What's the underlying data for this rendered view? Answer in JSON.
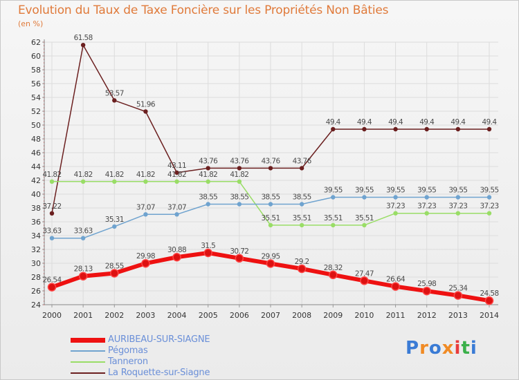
{
  "title": "Evolution du Taux de Taxe Foncière sur les Propriétés Non Bâties",
  "unit_label": "(en %)",
  "logo_text": "Proxiti",
  "chart_data": {
    "type": "line",
    "title": "Evolution du Taux de Taxe Foncière sur les Propriétés Non Bâties",
    "ylabel": "(en %)",
    "xlabel": "",
    "ylim": [
      24,
      62
    ],
    "yticks": [
      24,
      26,
      28,
      30,
      32,
      34,
      36,
      38,
      40,
      42,
      44,
      46,
      48,
      50,
      52,
      54,
      56,
      58,
      60,
      62
    ],
    "x": [
      "2000",
      "2001",
      "2002",
      "2003",
      "2004",
      "2005",
      "2006",
      "2007",
      "2008",
      "2009",
      "2010",
      "2011",
      "2012",
      "2013",
      "2014"
    ],
    "grid": true,
    "series": [
      {
        "name": "La Roquette-sur-Siagne",
        "color": "#6b1f1f",
        "values": [
          37.22,
          61.58,
          53.57,
          51.96,
          43.11,
          43.76,
          43.76,
          43.76,
          43.76,
          49.4,
          49.4,
          49.4,
          49.4,
          49.4,
          49.4
        ],
        "labels": [
          "37.22",
          "61.58",
          "53.57",
          "51.96",
          "43.11",
          "43.76",
          "43.76",
          "43.76",
          "43.76",
          "49.4",
          "49.4",
          "49.4",
          "49.4",
          "49.4",
          "49.4"
        ]
      },
      {
        "name": "Tanneron",
        "color": "#99dd66",
        "values": [
          41.82,
          41.82,
          41.82,
          41.82,
          41.82,
          41.82,
          41.82,
          35.51,
          35.51,
          35.51,
          35.51,
          37.23,
          37.23,
          37.23,
          37.23
        ],
        "labels": [
          "41.82",
          "41.82",
          "41.82",
          "41.82",
          "41.82",
          "41.82",
          "41.82",
          "35.51",
          "35.51",
          "35.51",
          "35.51",
          "37.23",
          "37.23",
          "37.23",
          "37.23"
        ]
      },
      {
        "name": "Pégomas",
        "color": "#6fa3cf",
        "values": [
          33.63,
          33.63,
          35.31,
          37.07,
          37.07,
          38.55,
          38.55,
          38.55,
          38.55,
          39.55,
          39.55,
          39.55,
          39.55,
          39.55,
          39.55
        ],
        "labels": [
          "33.63",
          "33.63",
          "35.31",
          "37.07",
          "37.07",
          "38.55",
          "38.55",
          "38.55",
          "38.55",
          "39.55",
          "39.55",
          "39.55",
          "39.55",
          "39.55",
          "39.55"
        ]
      },
      {
        "name": "AURIBEAU-SUR-SIAGNE",
        "color": "#ee1111",
        "values": [
          26.54,
          28.13,
          28.55,
          29.98,
          30.88,
          31.5,
          30.72,
          29.95,
          29.2,
          28.32,
          27.47,
          26.64,
          25.98,
          25.34,
          24.58
        ],
        "labels": [
          "26.54",
          "28.13",
          "28.55",
          "29.98",
          "30.88",
          "31.5",
          "30.72",
          "29.95",
          "29.2",
          "28.32",
          "27.47",
          "26.64",
          "25.98",
          "25.34",
          "24.58"
        ]
      }
    ],
    "legend": [
      {
        "name": "AURIBEAU-SUR-SIAGNE",
        "color": "#ee1111"
      },
      {
        "name": "Pégomas",
        "color": "#6fa3cf"
      },
      {
        "name": "Tanneron",
        "color": "#99dd66"
      },
      {
        "name": "La Roquette-sur-Siagne",
        "color": "#6b1f1f"
      }
    ],
    "legend_position": "bottom-left"
  }
}
